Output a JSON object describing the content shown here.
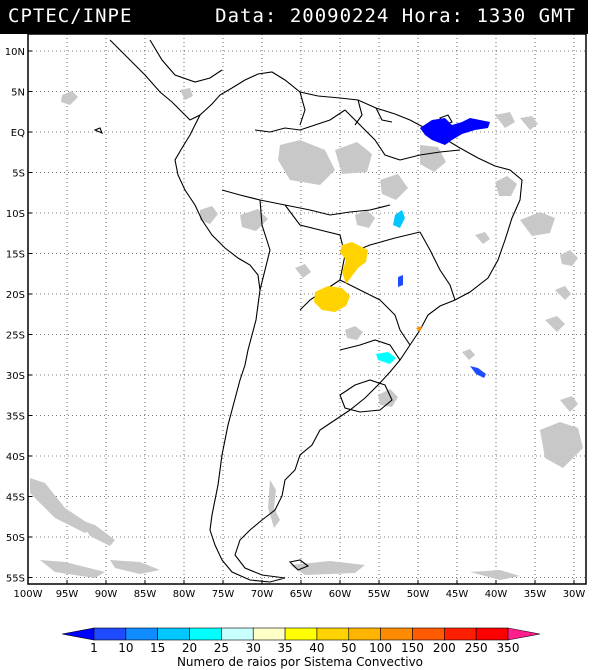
{
  "header": {
    "source": "CPTEC/INPE",
    "date_label": "Data:",
    "date": "20090224",
    "time_label": "Hora:",
    "time": "1330",
    "timezone": "GMT"
  },
  "map": {
    "lat_labels": [
      "10N",
      "5N",
      "EQ",
      "5S",
      "10S",
      "15S",
      "20S",
      "25S",
      "30S",
      "35S",
      "40S",
      "45S",
      "50S",
      "55S"
    ],
    "lon_labels": [
      "100W",
      "95W",
      "90W",
      "85W",
      "80W",
      "75W",
      "70W",
      "65W",
      "60W",
      "55W",
      "50W",
      "45W",
      "40W",
      "35W",
      "30W"
    ],
    "lon_range": [
      -100,
      -28
    ],
    "lat_range": [
      -56,
      13
    ],
    "colors": {
      "land_outline": "#000000",
      "ocean": "#ffffff",
      "cloud": "#c8c8c8",
      "grid": "#000000"
    }
  },
  "legend": {
    "title": "Numero de raios por Sistema Convectivo",
    "ticks": [
      "1",
      "10",
      "15",
      "20",
      "25",
      "30",
      "35",
      "40",
      "50",
      "100",
      "150",
      "200",
      "250",
      "350"
    ],
    "colors": [
      "#0000ff",
      "#1e4bff",
      "#0f8cff",
      "#00c8ff",
      "#00ffff",
      "#c8ffff",
      "#ffffc8",
      "#ffff00",
      "#ffd200",
      "#ffb400",
      "#ff8c00",
      "#ff5a00",
      "#ff1e00",
      "#ff0000",
      "#ff1e8c"
    ]
  }
}
